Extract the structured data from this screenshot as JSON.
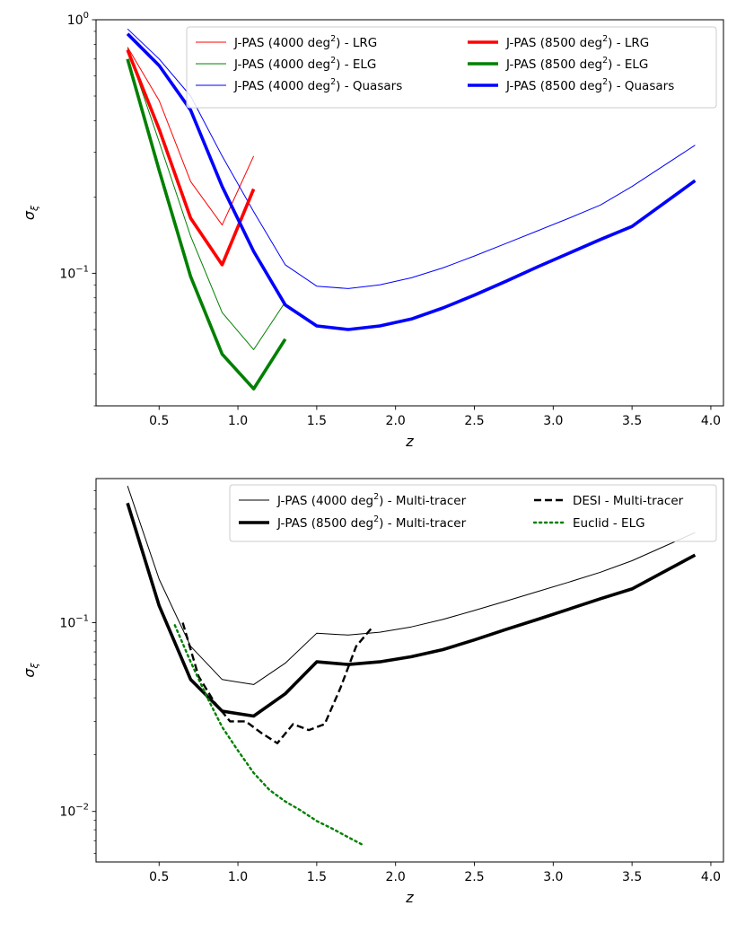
{
  "chart_data": [
    {
      "type": "line",
      "yscale": "log",
      "xlabel": "z",
      "ylabel_base": "σ",
      "ylabel_sub": "ξ",
      "xlim": [
        0.1,
        4.08
      ],
      "ylim": [
        0.03,
        1.0
      ],
      "xticks": [
        0.5,
        1.0,
        1.5,
        2.0,
        2.5,
        3.0,
        3.5,
        4.0
      ],
      "xtick_labels": [
        "0.5",
        "1.0",
        "1.5",
        "2.0",
        "2.5",
        "3.0",
        "3.5",
        "4.0"
      ],
      "yticks": [
        {
          "value": 0.1,
          "base": "10",
          "exp": "−1"
        },
        {
          "value": 1.0,
          "base": "10",
          "exp": "0"
        }
      ],
      "legend_position": "top-right",
      "legend_columns": 2,
      "series": [
        {
          "name": "J-PAS (4000 deg²) - LRG",
          "label_pre": "J-PAS (4000 deg",
          "label_sup": "2",
          "label_post": ") - LRG",
          "color": "#ff0000",
          "width": "thin",
          "dash": "solid",
          "x": [
            0.3,
            0.5,
            0.7,
            0.9,
            1.1
          ],
          "y": [
            0.78,
            0.48,
            0.23,
            0.155,
            0.29
          ]
        },
        {
          "name": "J-PAS (4000 deg²) - ELG",
          "label_pre": "J-PAS (4000 deg",
          "label_sup": "2",
          "label_post": ") - ELG",
          "color": "#008000",
          "width": "thin",
          "dash": "solid",
          "x": [
            0.3,
            0.5,
            0.7,
            0.9,
            1.1,
            1.3
          ],
          "y": [
            0.77,
            0.33,
            0.14,
            0.07,
            0.05,
            0.077
          ]
        },
        {
          "name": "J-PAS (4000 deg²) - Quasars",
          "label_pre": "J-PAS (4000 deg",
          "label_sup": "2",
          "label_post": ") - Quasars",
          "color": "#0000ff",
          "width": "thin",
          "dash": "solid",
          "x": [
            0.3,
            0.5,
            0.7,
            0.9,
            1.1,
            1.3,
            1.5,
            1.7,
            1.9,
            2.1,
            2.3,
            2.5,
            2.7,
            2.9,
            3.1,
            3.3,
            3.5,
            3.9
          ],
          "y": [
            0.92,
            0.7,
            0.5,
            0.29,
            0.175,
            0.108,
            0.089,
            0.087,
            0.09,
            0.096,
            0.105,
            0.117,
            0.131,
            0.147,
            0.165,
            0.186,
            0.22,
            0.32
          ]
        },
        {
          "name": "J-PAS (8500 deg²) - LRG",
          "label_pre": "J-PAS (8500 deg",
          "label_sup": "2",
          "label_post": ") - LRG",
          "color": "#ff0000",
          "width": "thick",
          "dash": "solid",
          "x": [
            0.3,
            0.5,
            0.7,
            0.9,
            1.1
          ],
          "y": [
            0.76,
            0.37,
            0.165,
            0.108,
            0.215
          ]
        },
        {
          "name": "J-PAS (8500 deg²) - ELG",
          "label_pre": "J-PAS (8500 deg",
          "label_sup": "2",
          "label_post": ") - ELG",
          "color": "#008000",
          "width": "thick",
          "dash": "solid",
          "x": [
            0.3,
            0.5,
            0.7,
            0.9,
            1.1,
            1.3
          ],
          "y": [
            0.7,
            0.255,
            0.097,
            0.048,
            0.035,
            0.055
          ]
        },
        {
          "name": "J-PAS (8500 deg²) - Quasars",
          "label_pre": "J-PAS (8500 deg",
          "label_sup": "2",
          "label_post": ") - Quasars",
          "color": "#0000ff",
          "width": "thick",
          "dash": "solid",
          "x": [
            0.3,
            0.5,
            0.7,
            0.9,
            1.1,
            1.3,
            1.5,
            1.7,
            1.9,
            2.1,
            2.3,
            2.5,
            2.7,
            2.9,
            3.1,
            3.3,
            3.5,
            3.9
          ],
          "y": [
            0.88,
            0.66,
            0.44,
            0.22,
            0.122,
            0.075,
            0.062,
            0.06,
            0.062,
            0.066,
            0.073,
            0.082,
            0.093,
            0.106,
            0.12,
            0.136,
            0.153,
            0.232
          ]
        }
      ]
    },
    {
      "type": "line",
      "yscale": "log",
      "xlabel": "z",
      "ylabel_base": "σ",
      "ylabel_sub": "ξ",
      "xlim": [
        0.1,
        4.08
      ],
      "ylim": [
        0.0054,
        0.58
      ],
      "xticks": [
        0.5,
        1.0,
        1.5,
        2.0,
        2.5,
        3.0,
        3.5,
        4.0
      ],
      "xtick_labels": [
        "0.5",
        "1.0",
        "1.5",
        "2.0",
        "2.5",
        "3.0",
        "3.5",
        "4.0"
      ],
      "yticks": [
        {
          "value": 0.01,
          "base": "10",
          "exp": "−2"
        },
        {
          "value": 0.1,
          "base": "10",
          "exp": "−1"
        }
      ],
      "legend_position": "top-right",
      "legend_columns": 2,
      "series": [
        {
          "name": "J-PAS (4000 deg²) - Multi-tracer",
          "label_pre": "J-PAS (4000 deg",
          "label_sup": "2",
          "label_post": ") - Multi-tracer",
          "color": "#000000",
          "width": "thin",
          "dash": "solid",
          "x": [
            0.3,
            0.5,
            0.7,
            0.9,
            1.1,
            1.3,
            1.5,
            1.7,
            1.9,
            2.1,
            2.3,
            2.5,
            2.7,
            2.9,
            3.1,
            3.3,
            3.5,
            3.9
          ],
          "y": [
            0.53,
            0.17,
            0.075,
            0.05,
            0.047,
            0.061,
            0.088,
            0.086,
            0.089,
            0.095,
            0.104,
            0.116,
            0.13,
            0.146,
            0.164,
            0.185,
            0.213,
            0.3
          ]
        },
        {
          "name": "J-PAS (8500 deg²) - Multi-tracer",
          "label_pre": "J-PAS (8500 deg",
          "label_sup": "2",
          "label_post": ") - Multi-tracer",
          "color": "#000000",
          "width": "thick",
          "dash": "solid",
          "x": [
            0.3,
            0.5,
            0.7,
            0.9,
            1.1,
            1.3,
            1.5,
            1.7,
            1.9,
            2.1,
            2.3,
            2.5,
            2.7,
            2.9,
            3.1,
            3.3,
            3.5,
            3.9
          ],
          "y": [
            0.43,
            0.123,
            0.05,
            0.034,
            0.032,
            0.042,
            0.062,
            0.06,
            0.062,
            0.066,
            0.072,
            0.081,
            0.092,
            0.104,
            0.118,
            0.134,
            0.151,
            0.228
          ]
        },
        {
          "name": "DESI - Multi-tracer",
          "label_pre": "DESI - Multi-tracer",
          "label_sup": "",
          "label_post": "",
          "color": "#000000",
          "width": "medium",
          "dash": "dashed",
          "x": [
            0.65,
            0.75,
            0.85,
            0.95,
            1.05,
            1.15,
            1.25,
            1.35,
            1.45,
            1.55,
            1.65,
            1.75,
            1.85
          ],
          "y": [
            0.1,
            0.052,
            0.038,
            0.03,
            0.03,
            0.026,
            0.023,
            0.029,
            0.027,
            0.029,
            0.045,
            0.075,
            0.094
          ]
        },
        {
          "name": "Euclid - ELG",
          "label_pre": "Euclid - ELG",
          "label_sup": "",
          "label_post": "",
          "color": "#008000",
          "width": "medium",
          "dash": "dotted",
          "x": [
            0.6,
            0.7,
            0.8,
            0.9,
            1.0,
            1.1,
            1.2,
            1.3,
            1.4,
            1.5,
            1.6,
            1.7,
            1.8
          ],
          "y": [
            0.097,
            0.062,
            0.041,
            0.028,
            0.021,
            0.016,
            0.013,
            0.0113,
            0.0101,
            0.0089,
            0.0081,
            0.0073,
            0.0066
          ]
        }
      ]
    }
  ]
}
